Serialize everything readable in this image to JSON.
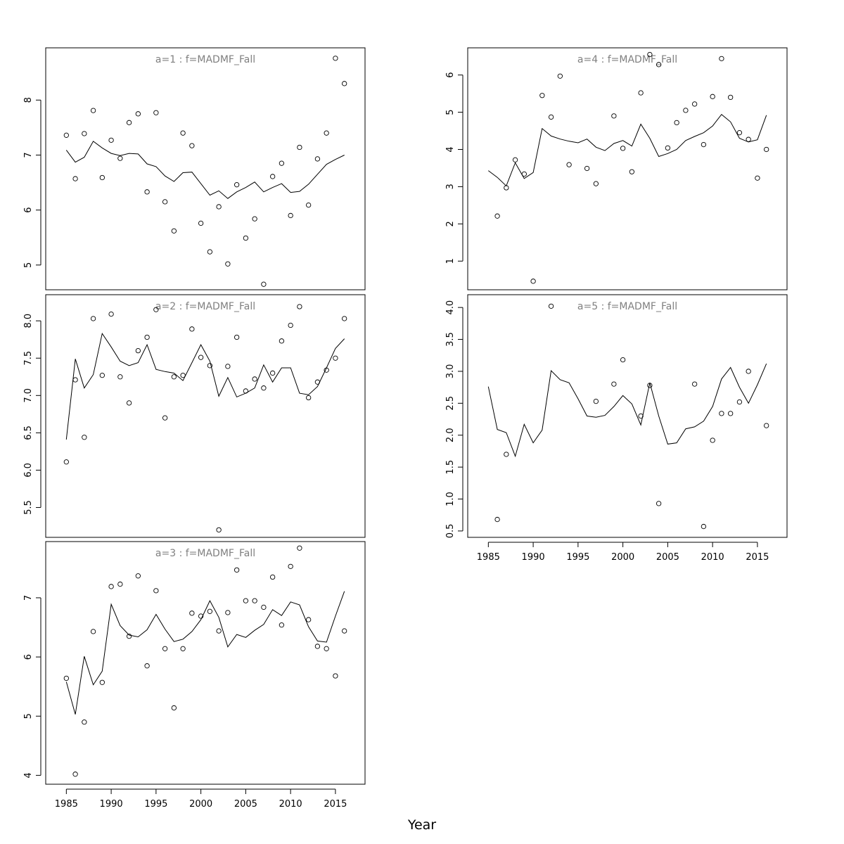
{
  "chart_data": {
    "type": "scatter",
    "xlabel": "Year",
    "grid": false,
    "x": [
      1985,
      1986,
      1987,
      1988,
      1989,
      1990,
      1991,
      1992,
      1993,
      1994,
      1995,
      1996,
      1997,
      1998,
      1999,
      2000,
      2001,
      2002,
      2003,
      2004,
      2005,
      2006,
      2007,
      2008,
      2009,
      2010,
      2011,
      2012,
      2013,
      2014,
      2015,
      2016
    ],
    "x_ticks": [
      1985,
      1990,
      1995,
      2000,
      2005,
      2010,
      2015
    ],
    "panels": [
      {
        "title": "a=1  :  f=MADMF_Fall",
        "ylim": [
          4.55,
          8.95
        ],
        "y_ticks": [
          5,
          6,
          7,
          8
        ],
        "observed": [
          7.36,
          6.57,
          7.39,
          7.81,
          6.59,
          7.27,
          6.94,
          7.59,
          7.75,
          6.33,
          7.77,
          6.15,
          5.62,
          7.4,
          7.17,
          5.76,
          5.24,
          6.06,
          5.02,
          6.46,
          5.49,
          5.84,
          4.65,
          6.61,
          6.85,
          5.9,
          7.14,
          6.09,
          6.93,
          7.4,
          8.76,
          8.3
        ],
        "predicted": [
          7.09,
          6.87,
          6.96,
          7.25,
          7.13,
          7.03,
          6.99,
          7.03,
          7.02,
          6.84,
          6.79,
          6.62,
          6.52,
          6.68,
          6.69,
          6.48,
          6.27,
          6.35,
          6.21,
          6.33,
          6.41,
          6.51,
          6.33,
          6.41,
          6.48,
          6.32,
          6.34,
          6.47,
          6.65,
          6.83,
          6.92,
          7.0
        ]
      },
      {
        "title": "a=2  :  f=MADMF_Fall",
        "ylim": [
          5.1,
          8.35
        ],
        "y_ticks": [
          5.5,
          6.0,
          6.5,
          7.0,
          7.5,
          8.0
        ],
        "y_tick_labels": [
          "5.5",
          "6.0",
          "6.5",
          "7.0",
          "7.5",
          "8.0"
        ],
        "observed": [
          6.11,
          7.21,
          6.44,
          8.03,
          7.27,
          8.09,
          7.25,
          6.9,
          7.6,
          7.78,
          8.15,
          6.7,
          7.25,
          7.27,
          7.89,
          7.51,
          7.4,
          5.2,
          7.39,
          7.78,
          7.06,
          7.22,
          7.1,
          7.3,
          7.73,
          7.94,
          8.19,
          6.97,
          7.18,
          7.34,
          7.5,
          8.03
        ],
        "predicted": [
          6.41,
          7.49,
          7.1,
          7.28,
          7.83,
          7.65,
          7.46,
          7.4,
          7.44,
          7.68,
          7.35,
          7.32,
          7.3,
          7.2,
          7.44,
          7.68,
          7.46,
          6.99,
          7.24,
          6.98,
          7.03,
          7.1,
          7.41,
          7.18,
          7.37,
          7.37,
          7.03,
          7.01,
          7.12,
          7.37,
          7.63,
          7.76
        ]
      },
      {
        "title": "a=3  :  f=MADMF_Fall",
        "ylim": [
          3.85,
          7.95
        ],
        "y_ticks": [
          4,
          5,
          6,
          7
        ],
        "observed": [
          5.64,
          4.02,
          4.9,
          6.43,
          5.57,
          7.19,
          7.23,
          6.35,
          7.37,
          5.85,
          7.12,
          6.14,
          5.14,
          6.14,
          6.74,
          6.69,
          6.77,
          6.44,
          6.75,
          7.47,
          6.95,
          6.95,
          6.84,
          7.35,
          6.54,
          7.53,
          7.84,
          6.63,
          6.18,
          6.14,
          5.68,
          6.44
        ],
        "predicted": [
          5.58,
          5.03,
          6.01,
          5.53,
          5.76,
          6.89,
          6.53,
          6.37,
          6.34,
          6.46,
          6.72,
          6.47,
          6.26,
          6.3,
          6.43,
          6.63,
          6.95,
          6.67,
          6.17,
          6.38,
          6.33,
          6.45,
          6.55,
          6.8,
          6.7,
          6.93,
          6.88,
          6.51,
          6.27,
          6.25,
          6.69,
          7.11
        ]
      },
      {
        "title": "a=4  :  f=MADMF_Fall",
        "ylim": [
          0.23,
          6.73
        ],
        "y_ticks": [
          1,
          2,
          3,
          4,
          5,
          6
        ],
        "observed": [
          null,
          2.21,
          2.97,
          3.72,
          3.34,
          0.46,
          5.45,
          4.87,
          5.97,
          3.59,
          null,
          3.49,
          3.08,
          null,
          4.9,
          4.03,
          3.4,
          5.52,
          6.55,
          6.28,
          4.04,
          4.72,
          5.05,
          5.22,
          4.13,
          5.42,
          6.44,
          5.4,
          4.45,
          4.27,
          3.23,
          4.0
        ],
        "predicted": [
          3.43,
          3.25,
          3.02,
          3.64,
          3.22,
          3.38,
          4.56,
          4.36,
          4.28,
          4.22,
          4.18,
          4.28,
          4.06,
          3.97,
          4.16,
          4.24,
          4.09,
          4.68,
          4.3,
          3.81,
          3.89,
          4.0,
          4.24,
          4.35,
          4.45,
          4.63,
          4.94,
          4.74,
          4.3,
          4.2,
          4.26,
          4.92
        ]
      },
      {
        "title": "a=5  :  f=MADMF_Fall",
        "ylim": [
          0.4,
          4.2
        ],
        "y_ticks": [
          0.5,
          1.0,
          1.5,
          2.0,
          2.5,
          3.0,
          3.5,
          4.0
        ],
        "y_tick_labels": [
          "0.5",
          "1.0",
          "1.5",
          "2.0",
          "2.5",
          "3.0",
          "3.5",
          "4.0"
        ],
        "observed": [
          null,
          0.68,
          1.7,
          null,
          null,
          null,
          null,
          4.02,
          null,
          null,
          null,
          null,
          2.53,
          null,
          2.8,
          3.18,
          null,
          2.3,
          2.78,
          0.93,
          null,
          null,
          null,
          2.8,
          0.57,
          1.92,
          2.34,
          2.34,
          2.52,
          3.0,
          null,
          2.15
        ],
        "predicted": [
          2.76,
          2.09,
          2.04,
          1.67,
          2.17,
          1.88,
          2.08,
          3.01,
          2.87,
          2.82,
          2.57,
          2.3,
          2.28,
          2.31,
          2.45,
          2.62,
          2.49,
          2.16,
          2.82,
          2.3,
          1.86,
          1.88,
          2.1,
          2.13,
          2.22,
          2.45,
          2.88,
          3.06,
          2.75,
          2.5,
          2.79,
          3.12
        ]
      }
    ]
  }
}
